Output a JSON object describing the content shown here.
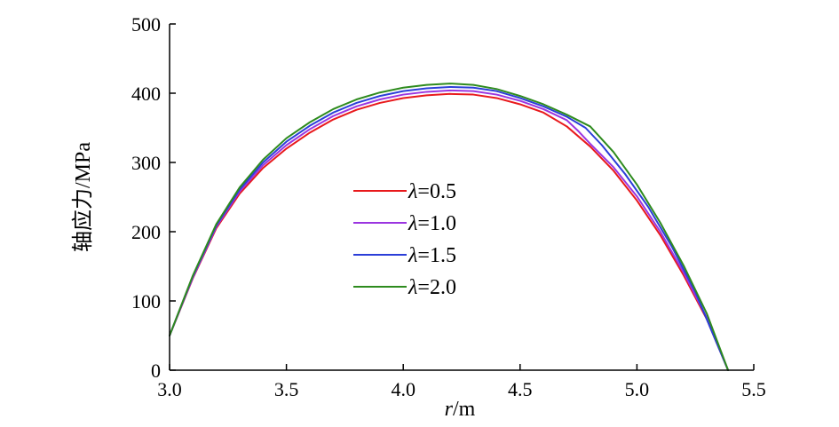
{
  "chart_data": {
    "type": "line",
    "title": "",
    "xlabel_var": "r",
    "xlabel_unit": "/m",
    "ylabel": "轴应力/MPa",
    "xlim": [
      3.0,
      5.5
    ],
    "ylim": [
      0,
      500
    ],
    "x_ticks": [
      3.0,
      3.5,
      4.0,
      4.5,
      5.0,
      5.5
    ],
    "x_tick_labels": [
      "3.0",
      "3.5",
      "4.0",
      "4.5",
      "5.0",
      "5.5"
    ],
    "y_ticks": [
      0,
      100,
      200,
      300,
      400,
      500
    ],
    "y_tick_labels": [
      "0",
      "100",
      "200",
      "300",
      "400",
      "500"
    ],
    "grid": false,
    "legend_position": "center-left",
    "legend_symbol": "λ",
    "series": [
      {
        "name": "=0.5",
        "color": "#e8191c",
        "points": [
          [
            3.0,
            50
          ],
          [
            3.1,
            133
          ],
          [
            3.2,
            205
          ],
          [
            3.3,
            255
          ],
          [
            3.4,
            292
          ],
          [
            3.5,
            320
          ],
          [
            3.6,
            343
          ],
          [
            3.7,
            362
          ],
          [
            3.8,
            376
          ],
          [
            3.9,
            386
          ],
          [
            4.0,
            393
          ],
          [
            4.1,
            397
          ],
          [
            4.2,
            399
          ],
          [
            4.3,
            398
          ],
          [
            4.4,
            393
          ],
          [
            4.5,
            384
          ],
          [
            4.6,
            372
          ],
          [
            4.7,
            352
          ],
          [
            4.8,
            323
          ],
          [
            4.9,
            288
          ],
          [
            5.0,
            245
          ],
          [
            5.1,
            195
          ],
          [
            5.2,
            137
          ],
          [
            5.3,
            73
          ],
          [
            5.39,
            0
          ]
        ]
      },
      {
        "name": "=1.0",
        "color": "#9b35e0",
        "points": [
          [
            3.0,
            50
          ],
          [
            3.1,
            134
          ],
          [
            3.2,
            207
          ],
          [
            3.3,
            258
          ],
          [
            3.4,
            296
          ],
          [
            3.5,
            325
          ],
          [
            3.6,
            348
          ],
          [
            3.7,
            367
          ],
          [
            3.8,
            381
          ],
          [
            3.9,
            391
          ],
          [
            4.0,
            398
          ],
          [
            4.1,
            402
          ],
          [
            4.2,
            404
          ],
          [
            4.3,
            403
          ],
          [
            4.4,
            398
          ],
          [
            4.5,
            389
          ],
          [
            4.6,
            377
          ],
          [
            4.7,
            361
          ],
          [
            4.75,
            345
          ],
          [
            4.8,
            327
          ],
          [
            4.9,
            293
          ],
          [
            5.0,
            251
          ],
          [
            5.1,
            200
          ],
          [
            5.2,
            141
          ],
          [
            5.3,
            75
          ],
          [
            5.39,
            0
          ]
        ]
      },
      {
        "name": "=1.5",
        "color": "#2b3ed8",
        "points": [
          [
            3.0,
            50
          ],
          [
            3.1,
            136
          ],
          [
            3.2,
            209
          ],
          [
            3.3,
            261
          ],
          [
            3.4,
            300
          ],
          [
            3.5,
            330
          ],
          [
            3.6,
            353
          ],
          [
            3.7,
            372
          ],
          [
            3.8,
            386
          ],
          [
            3.9,
            396
          ],
          [
            4.0,
            403
          ],
          [
            4.1,
            407
          ],
          [
            4.2,
            409
          ],
          [
            4.3,
            408
          ],
          [
            4.4,
            403
          ],
          [
            4.5,
            393
          ],
          [
            4.6,
            381
          ],
          [
            4.7,
            366
          ],
          [
            4.78,
            350
          ],
          [
            4.85,
            325
          ],
          [
            4.95,
            283
          ],
          [
            5.05,
            235
          ],
          [
            5.15,
            178
          ],
          [
            5.25,
            113
          ],
          [
            5.39,
            0
          ]
        ]
      },
      {
        "name": "=2.0",
        "color": "#2e8b1e",
        "points": [
          [
            3.0,
            50
          ],
          [
            3.1,
            137
          ],
          [
            3.2,
            211
          ],
          [
            3.3,
            264
          ],
          [
            3.4,
            304
          ],
          [
            3.5,
            335
          ],
          [
            3.6,
            358
          ],
          [
            3.7,
            377
          ],
          [
            3.8,
            391
          ],
          [
            3.9,
            401
          ],
          [
            4.0,
            408
          ],
          [
            4.1,
            412
          ],
          [
            4.2,
            414
          ],
          [
            4.3,
            412
          ],
          [
            4.4,
            406
          ],
          [
            4.5,
            396
          ],
          [
            4.6,
            384
          ],
          [
            4.7,
            369
          ],
          [
            4.8,
            352
          ],
          [
            4.9,
            315
          ],
          [
            5.0,
            268
          ],
          [
            5.1,
            213
          ],
          [
            5.2,
            151
          ],
          [
            5.3,
            81
          ],
          [
            5.39,
            0
          ]
        ]
      }
    ]
  }
}
